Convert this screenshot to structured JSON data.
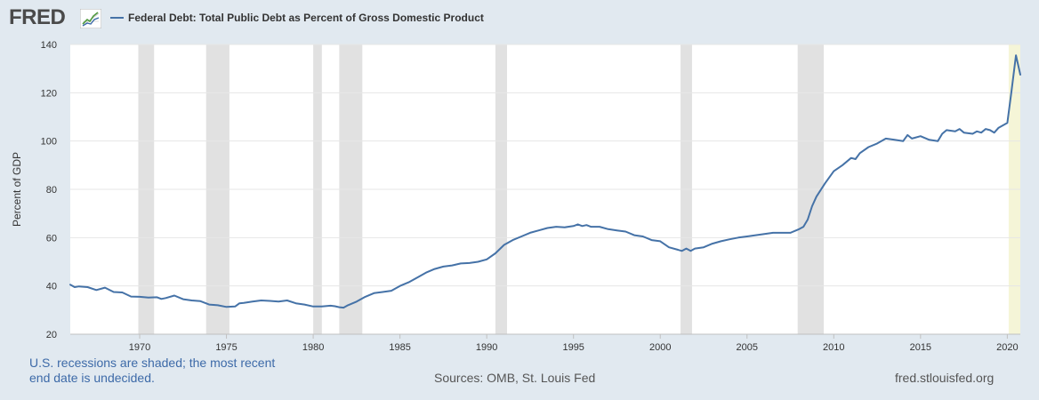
{
  "header": {
    "logo_text": "FRED",
    "logo_icon": "trend-chart-icon",
    "legend_label": "Federal Debt: Total Public Debt as Percent of Gross Domestic Product"
  },
  "footer": {
    "note": "U.S. recessions are shaded; the most recent end date is undecided.",
    "sources": "Sources: OMB, St. Louis Fed",
    "site": "fred.stlouisfed.org"
  },
  "colors": {
    "line": "#4572a7",
    "recession": "#e1e1e1",
    "undecided": "#f5f5d7",
    "background": "#e1e9f0",
    "plot": "#ffffff"
  },
  "chart_data": {
    "type": "line",
    "ylabel": "Percent of GDP",
    "xlim": [
      1966.0,
      2020.75
    ],
    "ylim": [
      20,
      140
    ],
    "yticks": [
      20,
      40,
      60,
      80,
      100,
      120,
      140
    ],
    "xticks": [
      1970,
      1975,
      1980,
      1985,
      1990,
      1995,
      2000,
      2005,
      2010,
      2015,
      2020
    ],
    "grid": "horizontal",
    "recessions": [
      [
        1969.92,
        1970.83
      ],
      [
        1973.83,
        1975.17
      ],
      [
        1980.0,
        1980.5
      ],
      [
        1981.5,
        1982.83
      ],
      [
        1990.5,
        1991.17
      ],
      [
        2001.17,
        2001.83
      ],
      [
        2007.92,
        2009.42
      ],
      [
        2020.08,
        2020.75
      ]
    ],
    "series": [
      {
        "values": [
          [
            1966.0,
            40.5
          ],
          [
            1966.25,
            39.5
          ],
          [
            1966.5,
            39.8
          ],
          [
            1967.0,
            39.5
          ],
          [
            1967.5,
            38.3
          ],
          [
            1968.0,
            39.3
          ],
          [
            1968.5,
            37.5
          ],
          [
            1969.0,
            37.3
          ],
          [
            1969.5,
            35.6
          ],
          [
            1970.0,
            35.5
          ],
          [
            1970.5,
            35.2
          ],
          [
            1971.0,
            35.3
          ],
          [
            1971.25,
            34.6
          ],
          [
            1971.5,
            35.0
          ],
          [
            1972.0,
            36.0
          ],
          [
            1972.5,
            34.5
          ],
          [
            1973.0,
            34.0
          ],
          [
            1973.5,
            33.7
          ],
          [
            1974.0,
            32.3
          ],
          [
            1974.5,
            32.0
          ],
          [
            1975.0,
            31.3
          ],
          [
            1975.5,
            31.5
          ],
          [
            1975.75,
            32.8
          ],
          [
            1976.0,
            33.0
          ],
          [
            1976.5,
            33.5
          ],
          [
            1977.0,
            34.0
          ],
          [
            1977.5,
            33.8
          ],
          [
            1978.0,
            33.5
          ],
          [
            1978.5,
            34.0
          ],
          [
            1979.0,
            32.8
          ],
          [
            1979.5,
            32.3
          ],
          [
            1980.0,
            31.5
          ],
          [
            1980.5,
            31.5
          ],
          [
            1981.0,
            31.8
          ],
          [
            1981.25,
            31.6
          ],
          [
            1981.5,
            31.2
          ],
          [
            1981.75,
            31.0
          ],
          [
            1982.0,
            32.0
          ],
          [
            1982.5,
            33.5
          ],
          [
            1983.0,
            35.5
          ],
          [
            1983.5,
            37.0
          ],
          [
            1984.0,
            37.5
          ],
          [
            1984.5,
            38.0
          ],
          [
            1985.0,
            40.0
          ],
          [
            1985.5,
            41.5
          ],
          [
            1986.0,
            43.5
          ],
          [
            1986.5,
            45.5
          ],
          [
            1987.0,
            47.0
          ],
          [
            1987.5,
            48.0
          ],
          [
            1988.0,
            48.5
          ],
          [
            1988.5,
            49.3
          ],
          [
            1989.0,
            49.5
          ],
          [
            1989.5,
            50.0
          ],
          [
            1990.0,
            51.0
          ],
          [
            1990.5,
            53.5
          ],
          [
            1991.0,
            57.0
          ],
          [
            1991.5,
            59.0
          ],
          [
            1992.0,
            60.5
          ],
          [
            1992.5,
            62.0
          ],
          [
            1993.0,
            63.0
          ],
          [
            1993.5,
            64.0
          ],
          [
            1994.0,
            64.5
          ],
          [
            1994.5,
            64.3
          ],
          [
            1995.0,
            64.8
          ],
          [
            1995.25,
            65.5
          ],
          [
            1995.5,
            64.8
          ],
          [
            1995.75,
            65.2
          ],
          [
            1996.0,
            64.5
          ],
          [
            1996.5,
            64.5
          ],
          [
            1997.0,
            63.5
          ],
          [
            1997.5,
            63.0
          ],
          [
            1998.0,
            62.5
          ],
          [
            1998.5,
            61.0
          ],
          [
            1999.0,
            60.5
          ],
          [
            1999.5,
            59.0
          ],
          [
            2000.0,
            58.5
          ],
          [
            2000.5,
            56.0
          ],
          [
            2001.0,
            55.0
          ],
          [
            2001.25,
            54.5
          ],
          [
            2001.5,
            55.5
          ],
          [
            2001.75,
            54.5
          ],
          [
            2002.0,
            55.5
          ],
          [
            2002.5,
            56.0
          ],
          [
            2003.0,
            57.5
          ],
          [
            2003.5,
            58.5
          ],
          [
            2004.0,
            59.3
          ],
          [
            2004.5,
            60.0
          ],
          [
            2005.0,
            60.5
          ],
          [
            2005.5,
            61.0
          ],
          [
            2006.0,
            61.5
          ],
          [
            2006.5,
            62.0
          ],
          [
            2007.0,
            62.0
          ],
          [
            2007.5,
            62.0
          ],
          [
            2008.0,
            63.5
          ],
          [
            2008.25,
            64.5
          ],
          [
            2008.5,
            67.5
          ],
          [
            2008.75,
            73.0
          ],
          [
            2009.0,
            77.0
          ],
          [
            2009.5,
            82.5
          ],
          [
            2010.0,
            87.5
          ],
          [
            2010.5,
            90.0
          ],
          [
            2011.0,
            93.0
          ],
          [
            2011.25,
            92.5
          ],
          [
            2011.5,
            95.0
          ],
          [
            2012.0,
            97.5
          ],
          [
            2012.5,
            99.0
          ],
          [
            2013.0,
            101.0
          ],
          [
            2013.5,
            100.5
          ],
          [
            2014.0,
            100.0
          ],
          [
            2014.25,
            102.5
          ],
          [
            2014.5,
            101.0
          ],
          [
            2015.0,
            102.0
          ],
          [
            2015.5,
            100.5
          ],
          [
            2016.0,
            100.0
          ],
          [
            2016.25,
            103.0
          ],
          [
            2016.5,
            104.5
          ],
          [
            2017.0,
            104.0
          ],
          [
            2017.25,
            105.0
          ],
          [
            2017.5,
            103.5
          ],
          [
            2018.0,
            103.0
          ],
          [
            2018.25,
            104.0
          ],
          [
            2018.5,
            103.5
          ],
          [
            2018.75,
            105.0
          ],
          [
            2019.0,
            104.5
          ],
          [
            2019.25,
            103.5
          ],
          [
            2019.5,
            105.5
          ],
          [
            2020.0,
            107.5
          ],
          [
            2020.25,
            121.0
          ],
          [
            2020.5,
            135.5
          ],
          [
            2020.75,
            127.5
          ]
        ]
      }
    ]
  }
}
